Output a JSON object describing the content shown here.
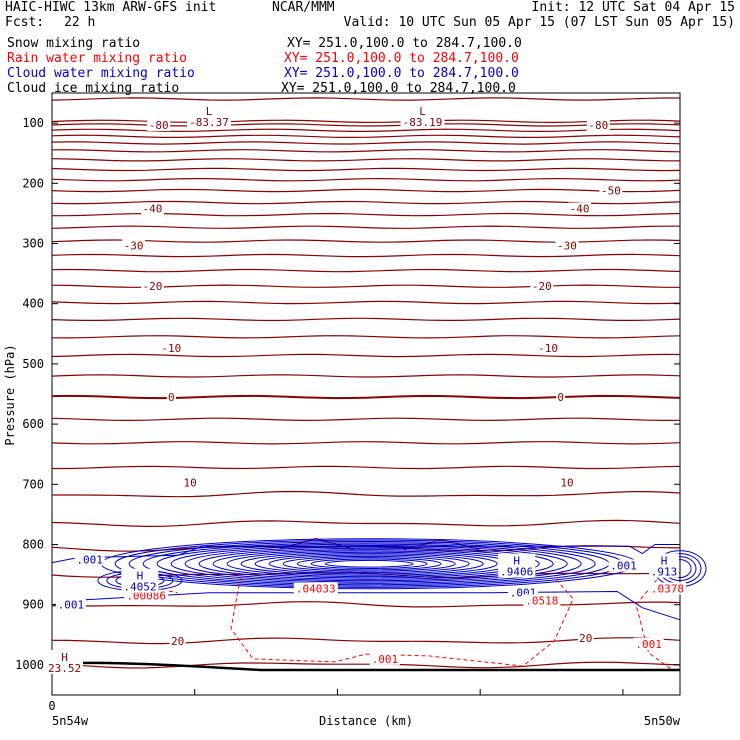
{
  "header": {
    "model": "HAIC-HIWC 13km ARW-GFS init",
    "org": "NCAR/MMM",
    "init": "Init: 12 UTC Sat 04 Apr 15",
    "fcst_label": "Fcst:",
    "fcst_value": "22 h",
    "valid": "Valid: 10 UTC Sun 05 Apr 15 (07 LST Sun 05 Apr 15)"
  },
  "fields": [
    {
      "name": "Snow mixing ratio",
      "xy": "XY= 251.0,100.0 to 284.7,100.0",
      "color": "#000000"
    },
    {
      "name": "Rain water mixing ratio",
      "xy": "XY= 251.0,100.0 to 284.7,100.0",
      "color": "#ff0000"
    },
    {
      "name": "Cloud water mixing ratio",
      "xy": "XY= 251.0,100.0 to 284.7,100.0",
      "color": "#0000cc"
    },
    {
      "name": "Cloud ice mixing ratio",
      "xy": "XY= 251.0,100.0 to 284.7,100.0",
      "color": "#000000"
    }
  ],
  "chart_data": {
    "type": "line",
    "ylabel": "Pressure (hPa)",
    "xlabel": "Distance (km)",
    "ylim": [
      1050,
      50
    ],
    "y_ticks": [
      100,
      200,
      300,
      400,
      500,
      600,
      700,
      800,
      900,
      1000
    ],
    "x_origin_label": "0",
    "x_left_label": "5n54w",
    "x_right_label": "5n50w",
    "temperature_contour_color": "#8b0000",
    "temperature_labels": [
      {
        "text": "-80",
        "p": 103,
        "x": 0.17
      },
      {
        "text": "-80",
        "p": 103,
        "x": 0.87
      },
      {
        "text": "-50",
        "p": 212,
        "x": 0.89
      },
      {
        "text": "-40",
        "p": 242,
        "x": 0.16
      },
      {
        "text": "-40",
        "p": 242,
        "x": 0.84
      },
      {
        "text": "-30",
        "p": 303,
        "x": 0.13
      },
      {
        "text": "-30",
        "p": 303,
        "x": 0.82
      },
      {
        "text": "-20",
        "p": 371,
        "x": 0.16
      },
      {
        "text": "-20",
        "p": 371,
        "x": 0.78
      },
      {
        "text": "-10",
        "p": 474,
        "x": 0.19
      },
      {
        "text": "-10",
        "p": 474,
        "x": 0.79
      },
      {
        "text": "0",
        "p": 555,
        "x": 0.19
      },
      {
        "text": "0",
        "p": 555,
        "x": 0.81
      },
      {
        "text": "10",
        "p": 697,
        "x": 0.22
      },
      {
        "text": "10",
        "p": 697,
        "x": 0.82
      },
      {
        "text": "20",
        "p": 960,
        "x": 0.2
      },
      {
        "text": "20",
        "p": 955,
        "x": 0.85
      }
    ],
    "extrema": [
      {
        "letter": "L",
        "value": "-83.37",
        "p": 88,
        "x": 0.25,
        "color": "#8b0000"
      },
      {
        "letter": "L",
        "value": "-83.19",
        "p": 88,
        "x": 0.59,
        "color": "#8b0000"
      },
      {
        "letter": "H",
        "value": "23.52",
        "p": 995,
        "x": 0.02,
        "color": "#8b0000"
      },
      {
        "letter": "H",
        "value": ".4052",
        "p": 860,
        "x": 0.14,
        "color": "#0000cc"
      },
      {
        "letter": "H",
        "value": ".9406",
        "p": 835,
        "x": 0.74,
        "color": "#0000cc"
      },
      {
        "letter": "H",
        "value": ".913",
        "p": 835,
        "x": 0.99,
        "color": "#0000cc"
      }
    ],
    "cloud_water_labels": [
      {
        "text": ".001",
        "p": 825,
        "x": 0.06
      },
      {
        "text": ".001",
        "p": 900,
        "x": 0.03
      },
      {
        "text": ".001",
        "p": 880,
        "x": 0.75
      },
      {
        "text": ".001",
        "p": 835,
        "x": 0.91
      }
    ],
    "rain_labels": [
      {
        "text": ".00086",
        "p": 885,
        "x": 0.15
      },
      {
        "text": ".04033",
        "p": 873,
        "x": 0.42
      },
      {
        "text": ".0518",
        "p": 893,
        "x": 0.78
      },
      {
        "text": ".0378",
        "p": 873,
        "x": 0.98
      },
      {
        "text": ".001",
        "p": 990,
        "x": 0.53
      },
      {
        "text": ".001",
        "p": 965,
        "x": 0.95
      }
    ]
  }
}
